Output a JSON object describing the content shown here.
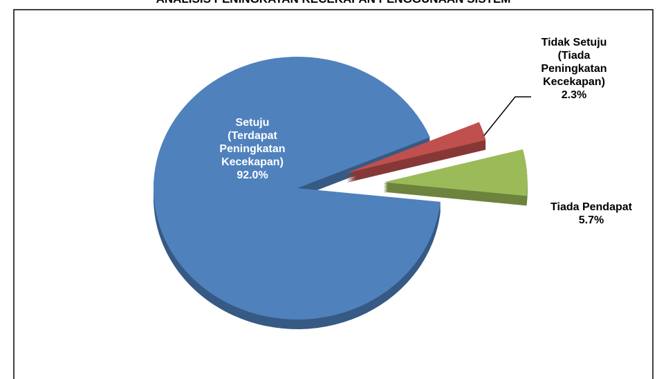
{
  "chart_data": {
    "type": "pie",
    "title": "ANALISIS PENINGKATAN KECEKAPAN PENGGUNAAN SISTEM",
    "categories": [
      "Setuju (Terdapat Peningkatan Kecekapan)",
      "Tidak Setuju (Tiada Peningkatan Kecekapan)",
      "Tiada Pendapat"
    ],
    "values": [
      92.0,
      2.3,
      5.7
    ],
    "value_labels": [
      "92.0%",
      "2.3%",
      "5.7%"
    ],
    "colors": [
      "#4f81bd",
      "#c0504d",
      "#9bbb59"
    ]
  }
}
